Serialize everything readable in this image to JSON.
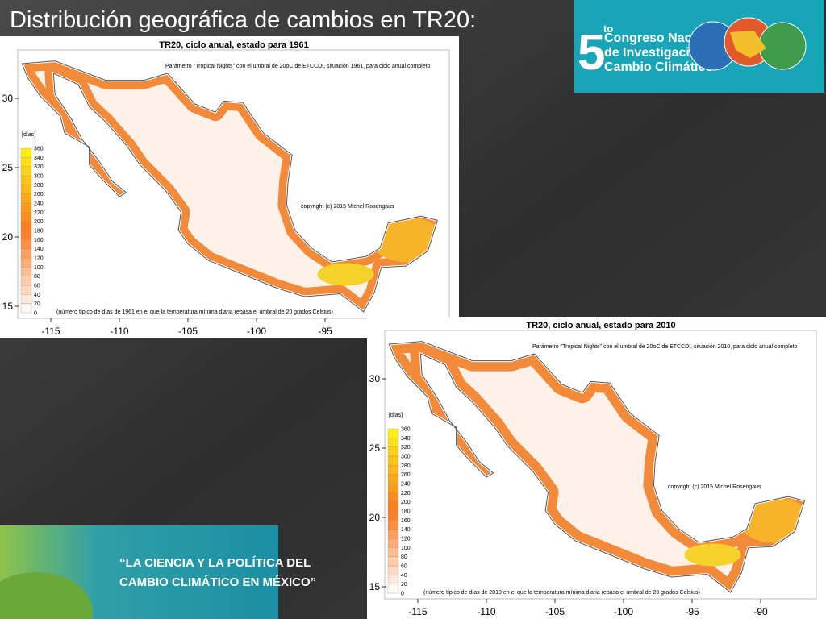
{
  "slide": {
    "title": "Distribución geográfica de cambios en TR20:"
  },
  "logo": {
    "number": "5",
    "suffix": "to",
    "lines": [
      "Congreso Nacional",
      "de Investigación en",
      "Cambio Climático"
    ]
  },
  "maps": [
    {
      "title": "TR20, ciclo anual, estado para 1961",
      "subtitle": "Parámetro \"Tropical Nights\" con el umbral de 20oC de ETCCDI, situación 1961, para ciclo anual completo",
      "copyright": "copyright (c) 2015 Michel Rosengaus",
      "footnote": "(número típico de días de 1961 en el que la temperatura mínima diaria rebasa el umbral de 20 grados Celsius)",
      "unit": "[días]",
      "legend_levels": [
        0,
        20,
        40,
        60,
        80,
        100,
        120,
        140,
        160,
        180,
        200,
        220,
        240,
        260,
        280,
        300,
        320,
        340,
        360
      ],
      "y_ticks": [
        15,
        20,
        25,
        30
      ],
      "x_ticks": [
        -115,
        -110,
        -105,
        -100,
        -95
      ]
    },
    {
      "title": "TR20, ciclo anual, estado para 2010",
      "subtitle": "Parámetro \"Tropical Nights\" con el umbral de 20oC de ETCCDI, situación 2010, para ciclo anual completo",
      "copyright": "copyright (c) 2015 Michel Rosengaus",
      "footnote": "(número típico de días de 2010 en el que la temperatura mínima diaria rebasa el umbral de 20 grados Celsius)",
      "unit": "[días]",
      "legend_levels": [
        0,
        20,
        40,
        60,
        80,
        100,
        120,
        140,
        160,
        180,
        200,
        220,
        240,
        260,
        280,
        300,
        320,
        340,
        360
      ],
      "y_ticks": [
        15,
        20,
        25,
        30
      ],
      "x_ticks": [
        -115,
        -110,
        -105,
        -100,
        -95,
        -90
      ]
    }
  ],
  "banner": {
    "lines": [
      "“LA CIENCIA Y LA POLÍTICA DEL",
      "CAMBIO CLIMÁTICO EN MÉXICO”"
    ]
  }
}
